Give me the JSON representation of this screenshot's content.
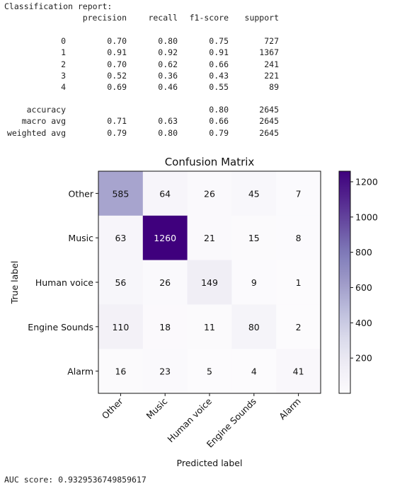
{
  "report": {
    "title": "Classification report:",
    "headers": [
      "precision",
      "recall",
      "f1-score",
      "support"
    ],
    "rows": [
      {
        "label": "0",
        "precision": "0.70",
        "recall": "0.80",
        "f1": "0.75",
        "support": "727"
      },
      {
        "label": "1",
        "precision": "0.91",
        "recall": "0.92",
        "f1": "0.91",
        "support": "1367"
      },
      {
        "label": "2",
        "precision": "0.70",
        "recall": "0.62",
        "f1": "0.66",
        "support": "241"
      },
      {
        "label": "3",
        "precision": "0.52",
        "recall": "0.36",
        "f1": "0.43",
        "support": "221"
      },
      {
        "label": "4",
        "precision": "0.69",
        "recall": "0.46",
        "f1": "0.55",
        "support": "89"
      }
    ],
    "summary": [
      {
        "label": "accuracy",
        "precision": "",
        "recall": "",
        "f1": "0.80",
        "support": "2645"
      },
      {
        "label": "macro avg",
        "precision": "0.71",
        "recall": "0.63",
        "f1": "0.66",
        "support": "2645"
      },
      {
        "label": "weighted avg",
        "precision": "0.79",
        "recall": "0.80",
        "f1": "0.79",
        "support": "2645"
      }
    ]
  },
  "chart_data": {
    "type": "heatmap",
    "title": "Confusion Matrix",
    "xlabel": "Predicted label",
    "ylabel": "True label",
    "labels": [
      "Other",
      "Music",
      "Human voice",
      "Engine Sounds",
      "Alarm"
    ],
    "matrix": [
      [
        585,
        64,
        26,
        45,
        7
      ],
      [
        63,
        1260,
        21,
        15,
        8
      ],
      [
        56,
        26,
        149,
        9,
        1
      ],
      [
        110,
        18,
        11,
        80,
        2
      ],
      [
        16,
        23,
        5,
        4,
        41
      ]
    ],
    "colormap": "Purples",
    "color_range": [
      0,
      1260
    ],
    "colorbar_ticks": [
      200,
      400,
      600,
      800,
      1000,
      1200
    ],
    "colorbar_tick_labels": [
      "200",
      "400",
      "600",
      "800",
      "1000",
      "1200"
    ],
    "text_threshold": 630
  },
  "auc": {
    "text": "AUC score: 0.9329536749859617"
  }
}
